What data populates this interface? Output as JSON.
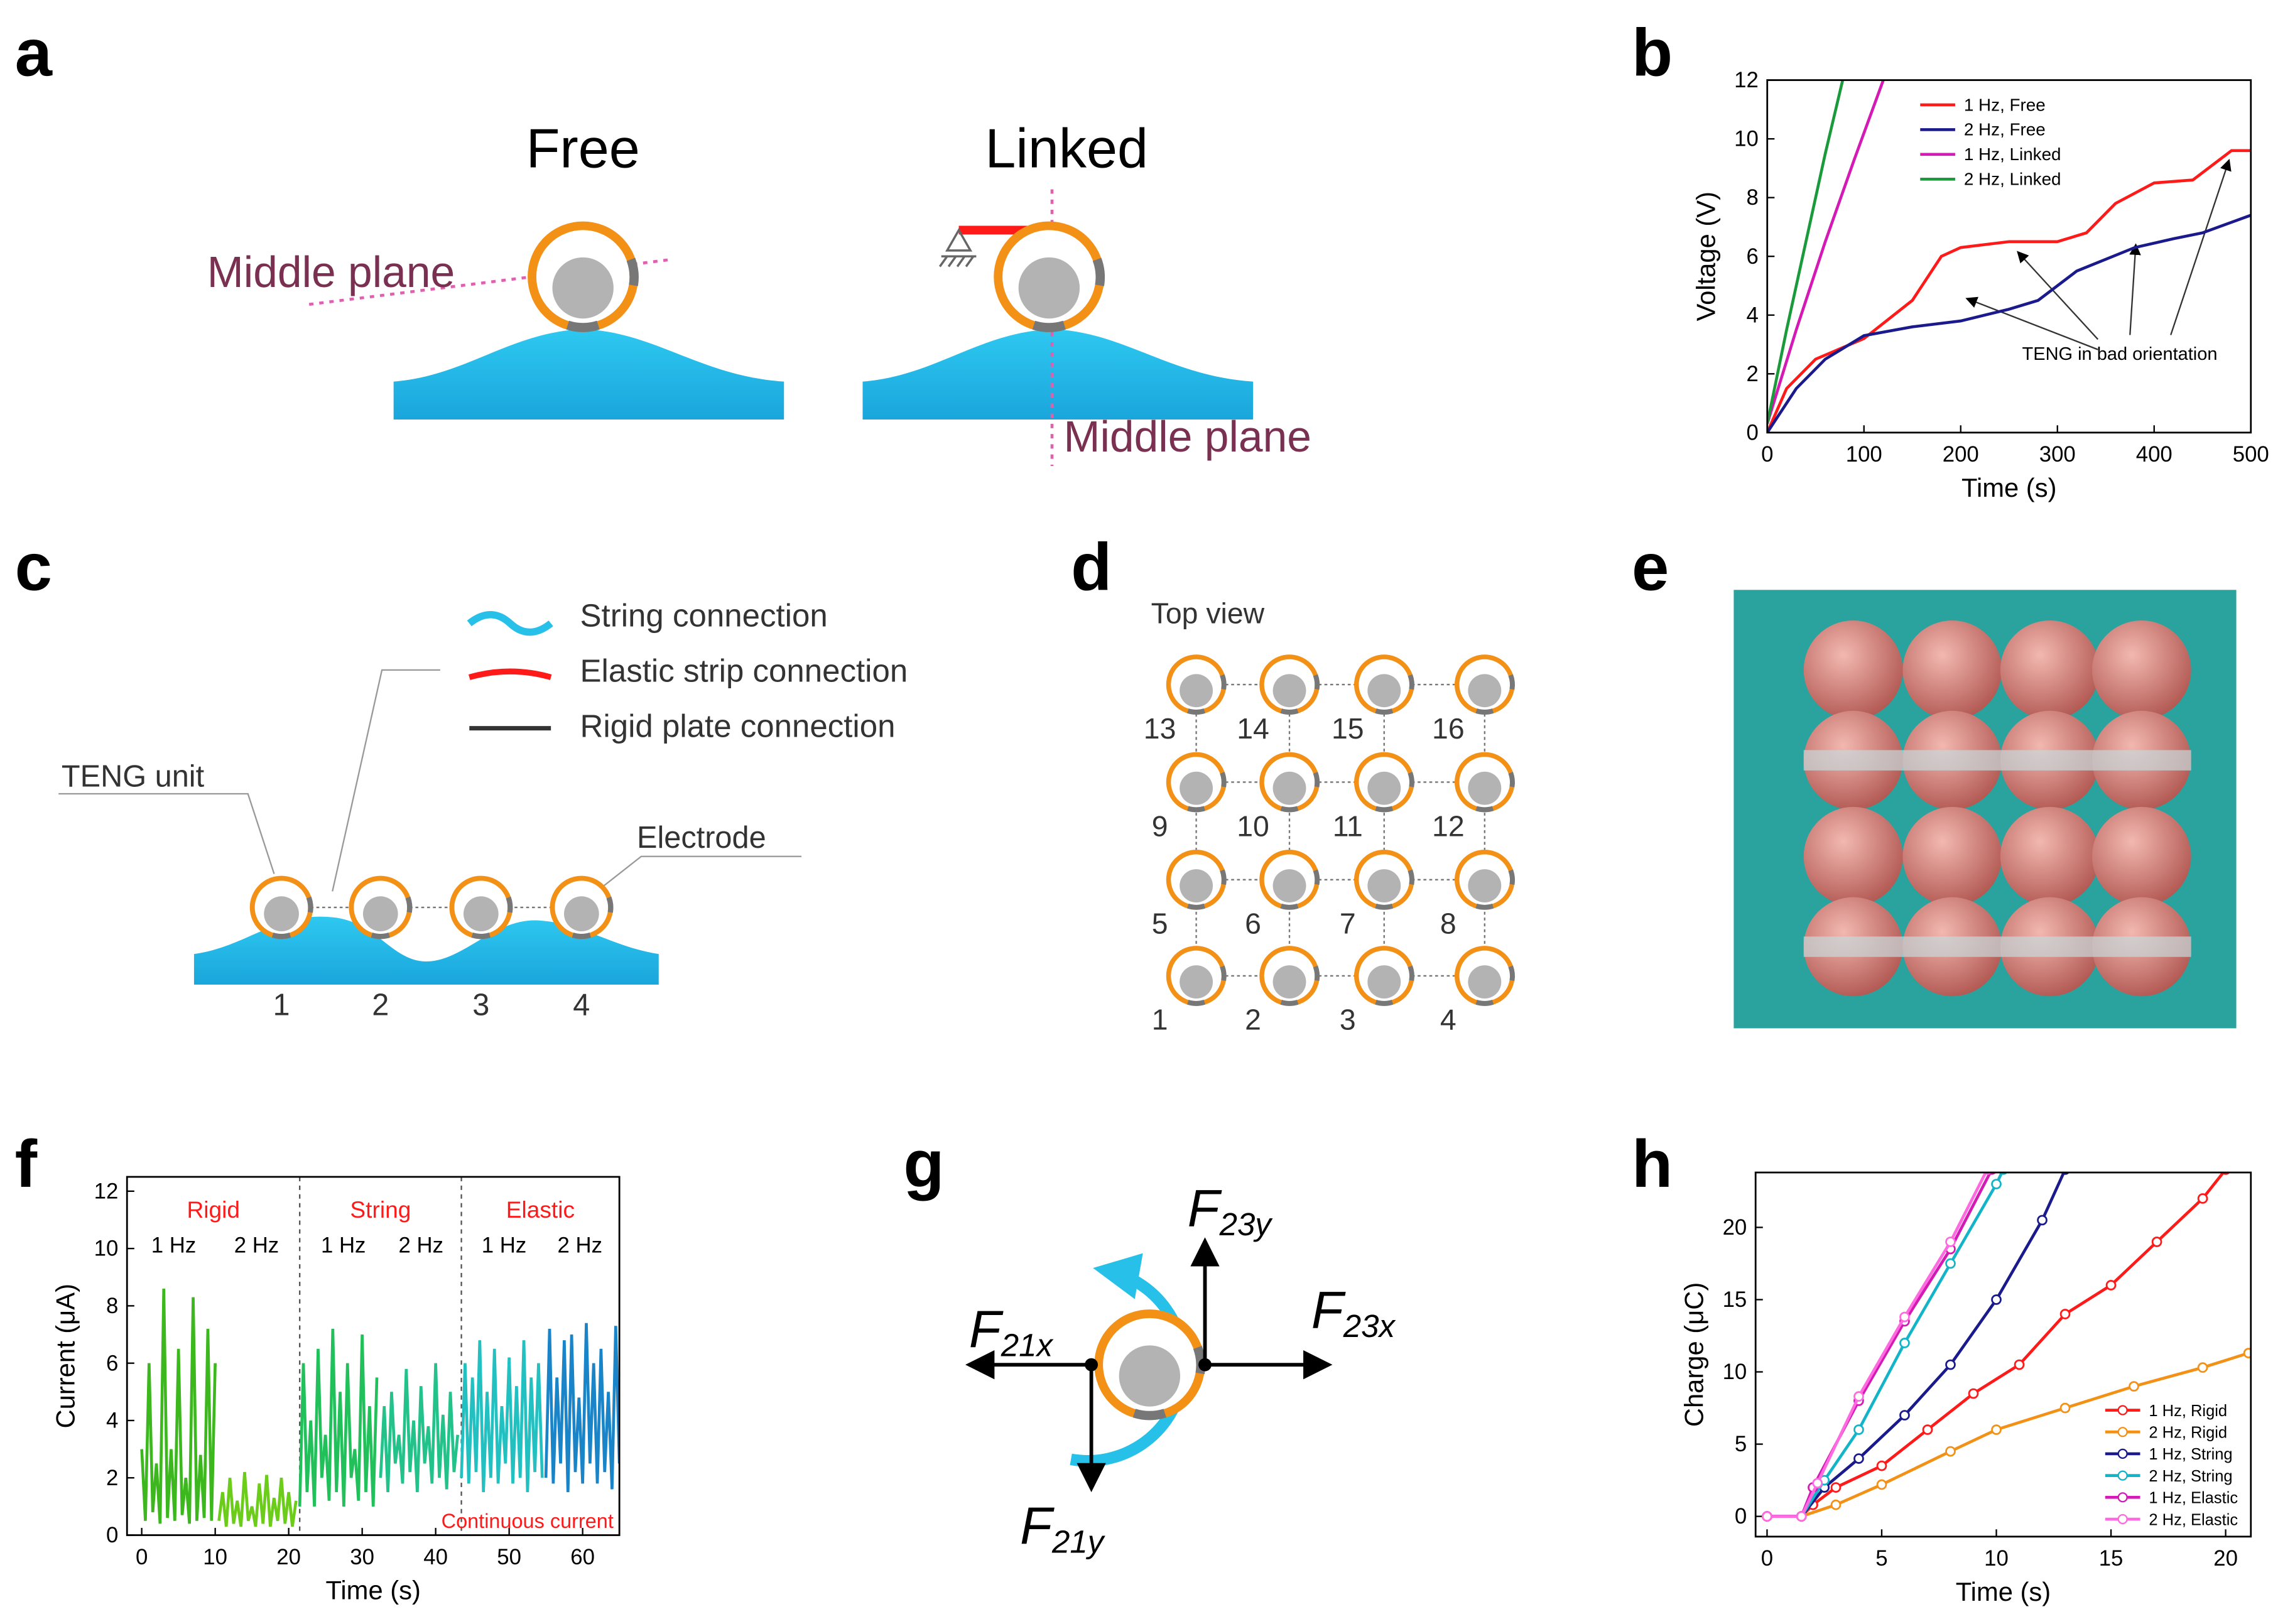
{
  "chart_data": [
    {
      "panel": "b",
      "type": "line",
      "xlabel": "Time (s)",
      "ylabel": "Voltage (V)",
      "xlim": [
        0,
        500
      ],
      "ylim": [
        0,
        12
      ],
      "xticks": [
        0,
        100,
        200,
        300,
        400,
        500
      ],
      "yticks": [
        0,
        2,
        4,
        6,
        8,
        10,
        12
      ],
      "legend": "upper left",
      "annotation": "TENG in bad orientation",
      "series": [
        {
          "name": "1 Hz, Free",
          "color": "#ff1a1a",
          "x": [
            0,
            20,
            50,
            100,
            150,
            180,
            200,
            250,
            300,
            330,
            360,
            400,
            440,
            480,
            500
          ],
          "values": [
            0,
            1.5,
            2.5,
            3.2,
            4.5,
            6,
            6.3,
            6.5,
            6.5,
            6.8,
            7.8,
            8.5,
            8.6,
            9.6,
            9.6
          ]
        },
        {
          "name": "2 Hz, Free",
          "color": "#1a1a8c",
          "x": [
            0,
            30,
            60,
            100,
            150,
            200,
            250,
            280,
            320,
            380,
            420,
            450,
            500
          ],
          "values": [
            0,
            1.5,
            2.5,
            3.3,
            3.6,
            3.8,
            4.2,
            4.5,
            5.5,
            6.3,
            6.6,
            6.8,
            7.4
          ]
        },
        {
          "name": "1 Hz, Linked",
          "color": "#d41ab4",
          "x": [
            0,
            30,
            60,
            90,
            120
          ],
          "values": [
            0.3,
            3.5,
            6.5,
            9.3,
            12
          ]
        },
        {
          "name": "2 Hz, Linked",
          "color": "#1a9a3a",
          "x": [
            0,
            20,
            40,
            60,
            78
          ],
          "values": [
            0.3,
            3.5,
            6.5,
            9.5,
            12
          ]
        }
      ]
    },
    {
      "panel": "f",
      "type": "line",
      "xlabel": "Time (s)",
      "ylabel": "Current (μA)",
      "xlim": [
        -2,
        65
      ],
      "ylim": [
        0,
        12.5
      ],
      "xticks": [
        0,
        10,
        20,
        30,
        40,
        50,
        60
      ],
      "yticks": [
        0,
        2,
        4,
        6,
        8,
        10,
        12
      ],
      "dividers": [
        21.5,
        43.5
      ],
      "annotation": "Continuous current",
      "groups": [
        {
          "label": "Rigid",
          "rates": [
            "1 Hz",
            "2 Hz"
          ]
        },
        {
          "label": "String",
          "rates": [
            "1 Hz",
            "2 Hz"
          ]
        },
        {
          "label": "Elastic",
          "rates": [
            "1 Hz",
            "2 Hz"
          ]
        }
      ],
      "series": [
        {
          "color": "#3cb81e",
          "x": [
            0,
            0.5,
            1,
            1.5,
            2,
            2.5,
            3,
            3.5,
            4,
            4.5,
            5,
            5.5,
            6,
            6.5,
            7,
            7.5,
            8,
            8.5,
            9,
            9.5,
            10
          ],
          "values": [
            3,
            0.5,
            6,
            0.8,
            2.5,
            0.4,
            8.6,
            0.6,
            3,
            0.5,
            6.5,
            0.7,
            2,
            0.4,
            8.3,
            0.5,
            2.8,
            0.6,
            7.2,
            0.5,
            6
          ]
        },
        {
          "color": "#6ccc1a",
          "x": [
            10.5,
            11,
            11.5,
            12,
            12.5,
            13,
            13.5,
            14,
            14.5,
            15,
            15.5,
            16,
            16.5,
            17,
            17.5,
            18,
            18.5,
            19,
            19.5,
            20,
            20.5,
            21
          ],
          "values": [
            0.5,
            1.5,
            0.3,
            2,
            0.4,
            1.2,
            0.3,
            2.2,
            0.5,
            1,
            0.3,
            1.8,
            0.4,
            2.1,
            0.3,
            1.3,
            0.5,
            2,
            0.4,
            1.5,
            0.3,
            1.2
          ]
        },
        {
          "color": "#22c05a",
          "x": [
            21.5,
            22,
            22.5,
            23,
            23.5,
            24,
            24.5,
            25,
            25.5,
            26,
            26.5,
            27,
            27.5,
            28,
            28.5,
            29,
            29.5,
            30,
            30.5,
            31,
            31.5,
            32
          ],
          "values": [
            1,
            6,
            1.5,
            4,
            1,
            6.5,
            2,
            3.5,
            1.2,
            7.2,
            1.5,
            5,
            1,
            6,
            2,
            3,
            1.2,
            7,
            1.5,
            4.5,
            1,
            5.5
          ]
        },
        {
          "color": "#22c28a",
          "x": [
            32.5,
            33,
            33.5,
            34,
            34.5,
            35,
            35.5,
            36,
            36.5,
            37,
            37.5,
            38,
            38.5,
            39,
            39.5,
            40,
            40.5,
            41,
            41.5,
            42,
            42.5,
            43
          ],
          "values": [
            2,
            4.5,
            1.5,
            5,
            2.5,
            3.5,
            1.8,
            5.8,
            2.2,
            4,
            1.5,
            5.2,
            2.5,
            3.8,
            1.8,
            6,
            2,
            4.2,
            1.6,
            5,
            2.2,
            3.5
          ]
        },
        {
          "color": "#22c0c0",
          "x": [
            43.5,
            44,
            44.5,
            45,
            45.5,
            46,
            46.5,
            47,
            47.5,
            48,
            48.5,
            49,
            49.5,
            50,
            50.5,
            51,
            51.5,
            52,
            52.5,
            53,
            53.5,
            54,
            54.5
          ],
          "values": [
            2,
            6,
            1.8,
            5.5,
            2.2,
            6.8,
            1.5,
            5,
            2,
            6.5,
            1.8,
            4.5,
            2.5,
            6.2,
            1.8,
            5.2,
            2,
            6.8,
            1.5,
            5.5,
            2.2,
            6,
            2
          ]
        },
        {
          "color": "#1a84c8",
          "x": [
            55,
            55.5,
            56,
            56.5,
            57,
            57.5,
            58,
            58.5,
            59,
            59.5,
            60,
            60.5,
            61,
            61.5,
            62,
            62.5,
            63,
            63.5,
            64,
            64.5,
            65
          ],
          "values": [
            2,
            7.2,
            1.8,
            5.5,
            2.5,
            6.8,
            1.5,
            7,
            2.2,
            4.8,
            1.8,
            7.4,
            2.5,
            6,
            1.8,
            6.5,
            2.2,
            5,
            1.6,
            7.3,
            2.5
          ]
        }
      ]
    },
    {
      "panel": "h",
      "type": "line",
      "xlabel": "Time (s)",
      "ylabel": "Charge (μC)",
      "xlim": [
        -0.5,
        21.1
      ],
      "ylim": [
        -1.4,
        23.8
      ],
      "xticks": [
        0,
        5,
        10,
        15,
        20
      ],
      "yticks": [
        0,
        5,
        10,
        15,
        20
      ],
      "legend": "lower right",
      "markers": true,
      "series": [
        {
          "name": "1 Hz, Rigid",
          "color": "#ff1a1a",
          "x": [
            0,
            1.5,
            2,
            3,
            5,
            7,
            9,
            11,
            13,
            15,
            17,
            19,
            20
          ],
          "values": [
            0,
            0,
            0.8,
            2,
            3.5,
            6,
            8.5,
            10.5,
            14,
            16,
            19,
            22,
            24
          ]
        },
        {
          "name": "2 Hz, Rigid",
          "color": "#f39016",
          "x": [
            0,
            1.5,
            3,
            5,
            8,
            10,
            13,
            16,
            19,
            21
          ],
          "values": [
            0,
            0,
            0.8,
            2.2,
            4.5,
            6,
            7.5,
            9,
            10.3,
            11.3
          ]
        },
        {
          "name": "1 Hz, String",
          "color": "#1a1a8c",
          "x": [
            0,
            1.5,
            2.5,
            4,
            6,
            8,
            10,
            12,
            13
          ],
          "values": [
            0,
            0,
            2,
            4,
            7,
            10.5,
            15,
            20.5,
            24
          ]
        },
        {
          "name": "2 Hz, String",
          "color": "#14b4c8",
          "x": [
            0,
            1.5,
            2.5,
            4,
            6,
            8,
            10,
            10.3
          ],
          "values": [
            0,
            0,
            2.5,
            6,
            12,
            17.5,
            23,
            24
          ]
        },
        {
          "name": "1 Hz, Elastic",
          "color": "#d41ab4",
          "x": [
            0,
            1.5,
            2,
            4,
            6,
            8,
            9.8
          ],
          "values": [
            0,
            0,
            2,
            8,
            13.5,
            18.5,
            24
          ]
        },
        {
          "name": "2 Hz, Elastic",
          "color": "#ff6ae0",
          "x": [
            0,
            1.5,
            2.2,
            4,
            6,
            8,
            9.6
          ],
          "values": [
            0,
            0,
            2.3,
            8.3,
            13.8,
            19,
            24
          ]
        }
      ]
    }
  ],
  "panels": {
    "a": {
      "label": "a",
      "free": "Free",
      "linked": "Linked",
      "middle_plane": "Middle plane"
    },
    "c": {
      "label": "c",
      "legend": [
        "String connection",
        "Elastic strip connection",
        "Rigid plate connection"
      ],
      "teng_unit": "TENG unit",
      "electrode": "Electrode",
      "units": [
        1,
        2,
        3,
        4
      ]
    },
    "d": {
      "label": "d",
      "title": "Top view",
      "units": [
        [
          13,
          14,
          15,
          16
        ],
        [
          9,
          10,
          11,
          12
        ],
        [
          5,
          6,
          7,
          8
        ],
        [
          1,
          2,
          3,
          4
        ]
      ]
    },
    "e": {
      "label": "e"
    },
    "g": {
      "label": "g",
      "forces": [
        {
          "symbol": "F",
          "subscript": "21x"
        },
        {
          "symbol": "F",
          "subscript": "23y"
        },
        {
          "symbol": "F",
          "subscript": "23x"
        },
        {
          "symbol": "F",
          "subscript": "21y"
        }
      ]
    }
  }
}
